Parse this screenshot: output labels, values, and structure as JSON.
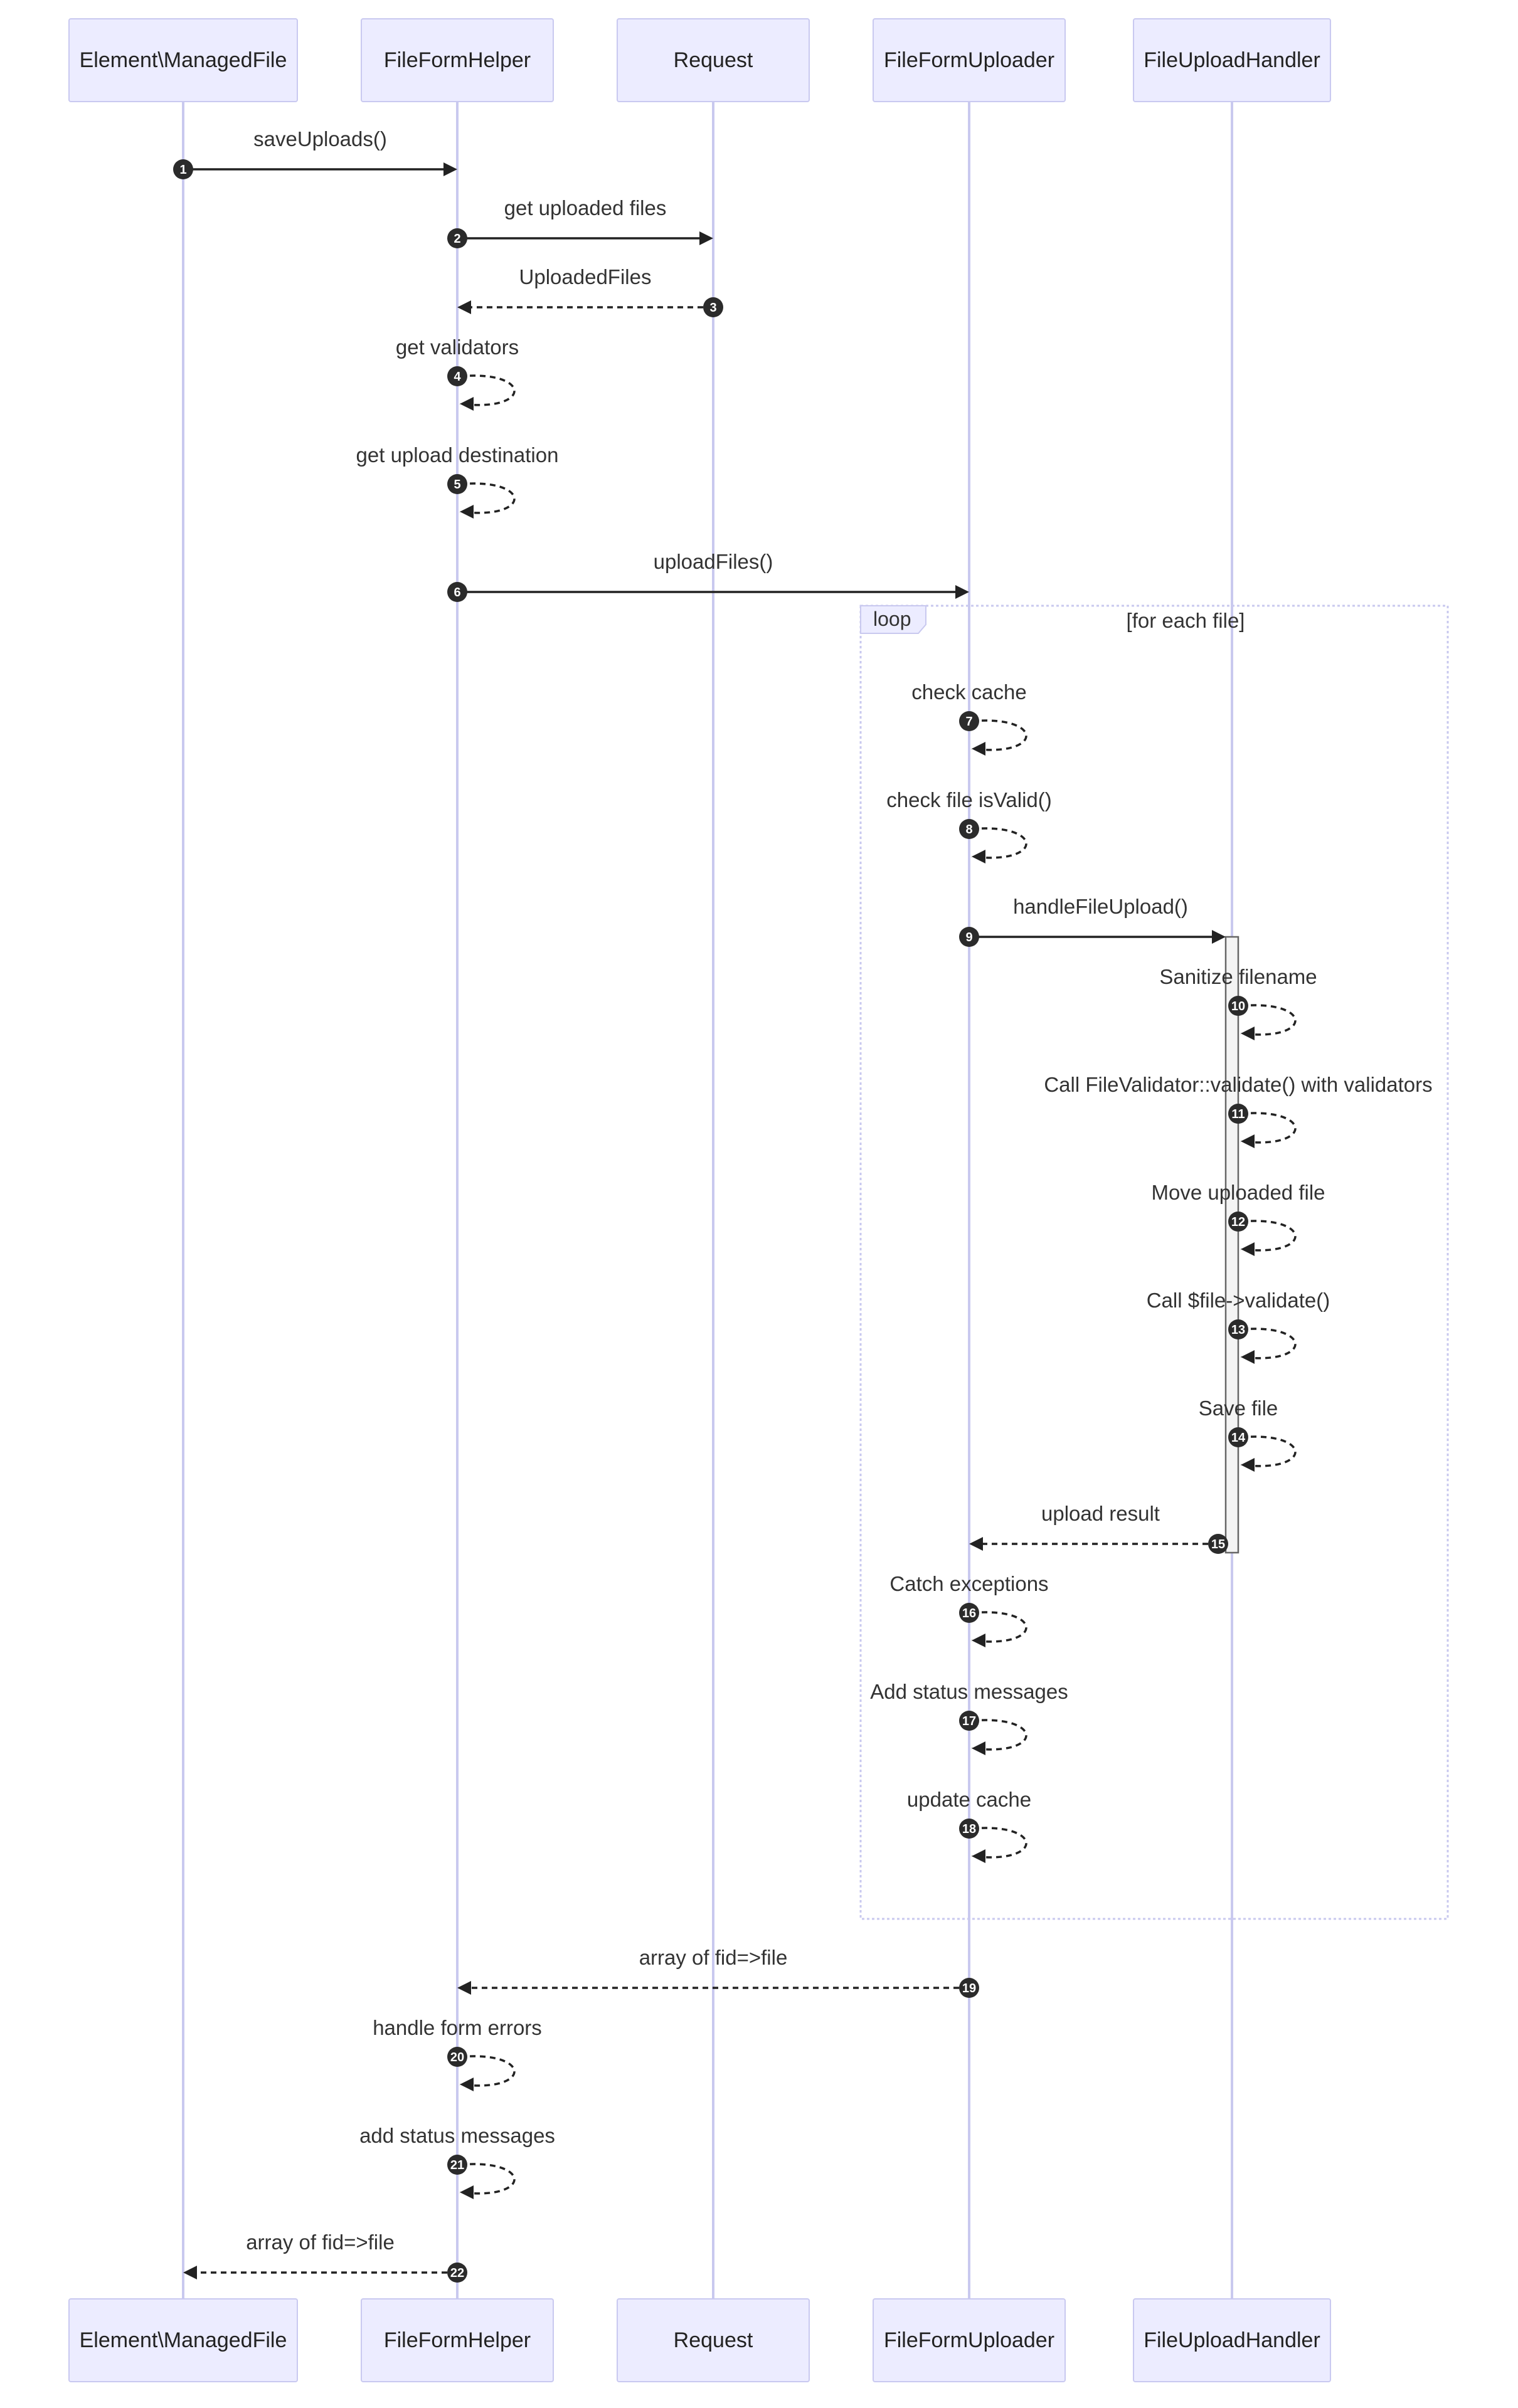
{
  "participants": [
    {
      "id": "managedfile",
      "label": "Element\\ManagedFile"
    },
    {
      "id": "helper",
      "label": "FileFormHelper"
    },
    {
      "id": "request",
      "label": "Request"
    },
    {
      "id": "uploader",
      "label": "FileFormUploader"
    },
    {
      "id": "handler",
      "label": "FileUploadHandler"
    }
  ],
  "loop": {
    "tag": "loop",
    "condition": "[for each file]"
  },
  "messages": [
    {
      "num": "1",
      "from": "managedfile",
      "to": "helper",
      "label": "saveUploads()",
      "style": "solid"
    },
    {
      "num": "2",
      "from": "helper",
      "to": "request",
      "label": "get uploaded files",
      "style": "solid"
    },
    {
      "num": "3",
      "from": "request",
      "to": "helper",
      "label": "UploadedFiles",
      "style": "dashed"
    },
    {
      "num": "4",
      "from": "helper",
      "to": "helper",
      "label": "get validators",
      "style": "dashed"
    },
    {
      "num": "5",
      "from": "helper",
      "to": "helper",
      "label": "get upload destination",
      "style": "dashed"
    },
    {
      "num": "6",
      "from": "helper",
      "to": "uploader",
      "label": "uploadFiles()",
      "style": "solid"
    },
    {
      "num": "7",
      "from": "uploader",
      "to": "uploader",
      "label": "check cache",
      "style": "dashed"
    },
    {
      "num": "8",
      "from": "uploader",
      "to": "uploader",
      "label": "check file isValid()",
      "style": "dashed"
    },
    {
      "num": "9",
      "from": "uploader",
      "to": "handler",
      "label": "handleFileUpload()",
      "style": "solid"
    },
    {
      "num": "10",
      "from": "handler",
      "to": "handler",
      "label": "Sanitize filename",
      "style": "dashed"
    },
    {
      "num": "11",
      "from": "handler",
      "to": "handler",
      "label": "Call FileValidator::validate() with validators",
      "style": "dashed"
    },
    {
      "num": "12",
      "from": "handler",
      "to": "handler",
      "label": "Move uploaded file",
      "style": "dashed"
    },
    {
      "num": "13",
      "from": "handler",
      "to": "handler",
      "label": "Call $file->validate()",
      "style": "dashed"
    },
    {
      "num": "14",
      "from": "handler",
      "to": "handler",
      "label": "Save file",
      "style": "dashed"
    },
    {
      "num": "15",
      "from": "handler",
      "to": "uploader",
      "label": "upload result",
      "style": "dashed"
    },
    {
      "num": "16",
      "from": "uploader",
      "to": "uploader",
      "label": "Catch exceptions",
      "style": "dashed"
    },
    {
      "num": "17",
      "from": "uploader",
      "to": "uploader",
      "label": "Add status messages",
      "style": "dashed"
    },
    {
      "num": "18",
      "from": "uploader",
      "to": "uploader",
      "label": "update cache",
      "style": "dashed"
    },
    {
      "num": "19",
      "from": "uploader",
      "to": "helper",
      "label": "array of fid=>file",
      "style": "dashed"
    },
    {
      "num": "20",
      "from": "helper",
      "to": "helper",
      "label": "handle form errors",
      "style": "dashed"
    },
    {
      "num": "21",
      "from": "helper",
      "to": "helper",
      "label": "add status messages",
      "style": "dashed"
    },
    {
      "num": "22",
      "from": "helper",
      "to": "managedfile",
      "label": "array of fid=>file",
      "style": "dashed"
    }
  ]
}
